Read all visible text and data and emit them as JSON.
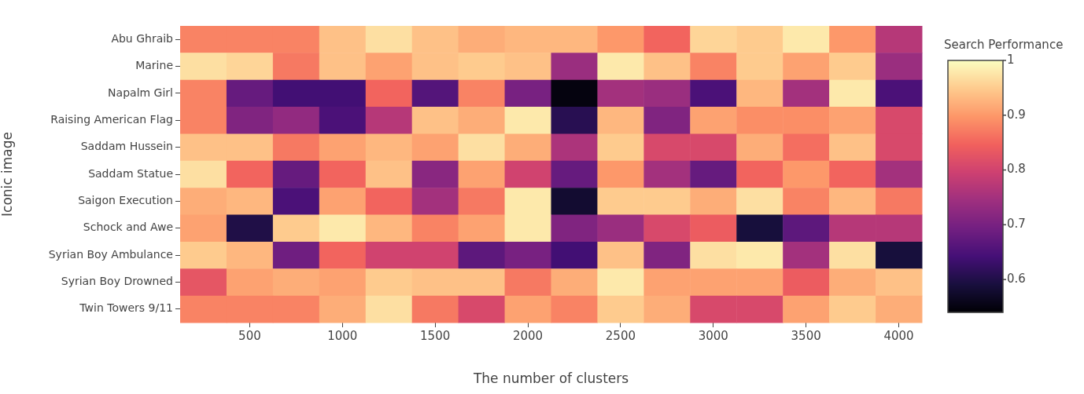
{
  "chart_data": {
    "type": "heatmap",
    "xlabel": "The number of clusters",
    "ylabel": "Iconic image",
    "clabel": "Search Performance",
    "categories": [
      null,
      "500",
      null,
      "1000",
      null,
      "1500",
      null,
      "2000",
      null,
      "2500",
      null,
      "3000",
      null,
      "3500",
      null,
      "4000"
    ],
    "y_categories": [
      "Abu Ghraib",
      "Marine",
      "Napalm Girl",
      "Raising American Flag",
      "Saddam Hussein",
      "Saddam Statue",
      "Saigon Execution",
      "Schock and Awe",
      "Syrian Boy Ambulance",
      "Syrian Boy Drowned",
      "Twin Towers 9/11"
    ],
    "cells": [
      [
        0.88,
        0.88,
        0.88,
        0.94,
        0.97,
        0.94,
        0.92,
        0.93,
        0.93,
        0.9,
        0.85,
        0.96,
        0.95,
        0.98,
        0.9,
        0.77
      ],
      [
        0.97,
        0.96,
        0.87,
        0.94,
        0.91,
        0.94,
        0.95,
        0.94,
        0.74,
        0.98,
        0.94,
        0.88,
        0.95,
        0.91,
        0.95,
        0.74
      ],
      [
        0.88,
        0.68,
        0.64,
        0.64,
        0.85,
        0.66,
        0.88,
        0.7,
        0.55,
        0.75,
        0.74,
        0.65,
        0.93,
        0.75,
        0.98,
        0.65
      ],
      [
        0.88,
        0.71,
        0.73,
        0.65,
        0.77,
        0.94,
        0.92,
        0.98,
        0.61,
        0.93,
        0.71,
        0.91,
        0.89,
        0.89,
        0.91,
        0.81
      ],
      [
        0.94,
        0.94,
        0.87,
        0.91,
        0.93,
        0.91,
        0.97,
        0.92,
        0.76,
        0.95,
        0.81,
        0.81,
        0.92,
        0.86,
        0.94,
        0.81
      ],
      [
        0.97,
        0.85,
        0.68,
        0.85,
        0.94,
        0.72,
        0.91,
        0.8,
        0.68,
        0.9,
        0.75,
        0.68,
        0.85,
        0.9,
        0.85,
        0.75
      ],
      [
        0.92,
        0.93,
        0.65,
        0.91,
        0.85,
        0.75,
        0.87,
        0.98,
        0.58,
        0.95,
        0.95,
        0.92,
        0.97,
        0.88,
        0.93,
        0.87
      ],
      [
        0.91,
        0.6,
        0.95,
        0.98,
        0.93,
        0.88,
        0.91,
        0.98,
        0.71,
        0.74,
        0.81,
        0.84,
        0.59,
        0.67,
        0.77,
        0.77
      ],
      [
        0.95,
        0.93,
        0.69,
        0.85,
        0.8,
        0.8,
        0.67,
        0.7,
        0.64,
        0.94,
        0.71,
        0.97,
        0.98,
        0.75,
        0.97,
        0.59
      ],
      [
        0.83,
        0.91,
        0.92,
        0.91,
        0.95,
        0.94,
        0.94,
        0.87,
        0.92,
        0.98,
        0.91,
        0.91,
        0.91,
        0.84,
        0.92,
        0.94
      ],
      [
        0.88,
        0.88,
        0.88,
        0.92,
        0.97,
        0.87,
        0.81,
        0.91,
        0.88,
        0.95,
        0.92,
        0.81,
        0.81,
        0.91,
        0.95,
        0.92
      ]
    ],
    "clim": [
      0.54,
      1
    ],
    "cticks": [
      0.6,
      0.7,
      0.8,
      0.9,
      1
    ]
  }
}
